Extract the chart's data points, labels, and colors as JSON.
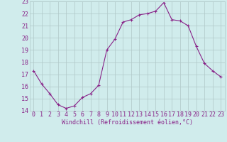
{
  "x": [
    0,
    1,
    2,
    3,
    4,
    5,
    6,
    7,
    8,
    9,
    10,
    11,
    12,
    13,
    14,
    15,
    16,
    17,
    18,
    19,
    20,
    21,
    22,
    23
  ],
  "y": [
    17.3,
    16.2,
    15.4,
    14.5,
    14.2,
    14.4,
    15.1,
    15.4,
    16.1,
    19.0,
    19.9,
    21.3,
    21.5,
    21.9,
    22.0,
    22.2,
    22.9,
    21.5,
    21.4,
    21.0,
    19.3,
    17.9,
    17.3,
    16.8
  ],
  "line_color": "#882288",
  "marker": "+",
  "marker_size": 3,
  "bg_color": "#d0ecec",
  "grid_color": "#b0c8c8",
  "xlabel": "Windchill (Refroidissement éolien,°C)",
  "ylim": [
    14,
    23
  ],
  "yticks": [
    14,
    15,
    16,
    17,
    18,
    19,
    20,
    21,
    22,
    23
  ],
  "xticks": [
    0,
    1,
    2,
    3,
    4,
    5,
    6,
    7,
    8,
    9,
    10,
    11,
    12,
    13,
    14,
    15,
    16,
    17,
    18,
    19,
    20,
    21,
    22,
    23
  ],
  "xlabel_fontsize": 6,
  "tick_fontsize": 6
}
